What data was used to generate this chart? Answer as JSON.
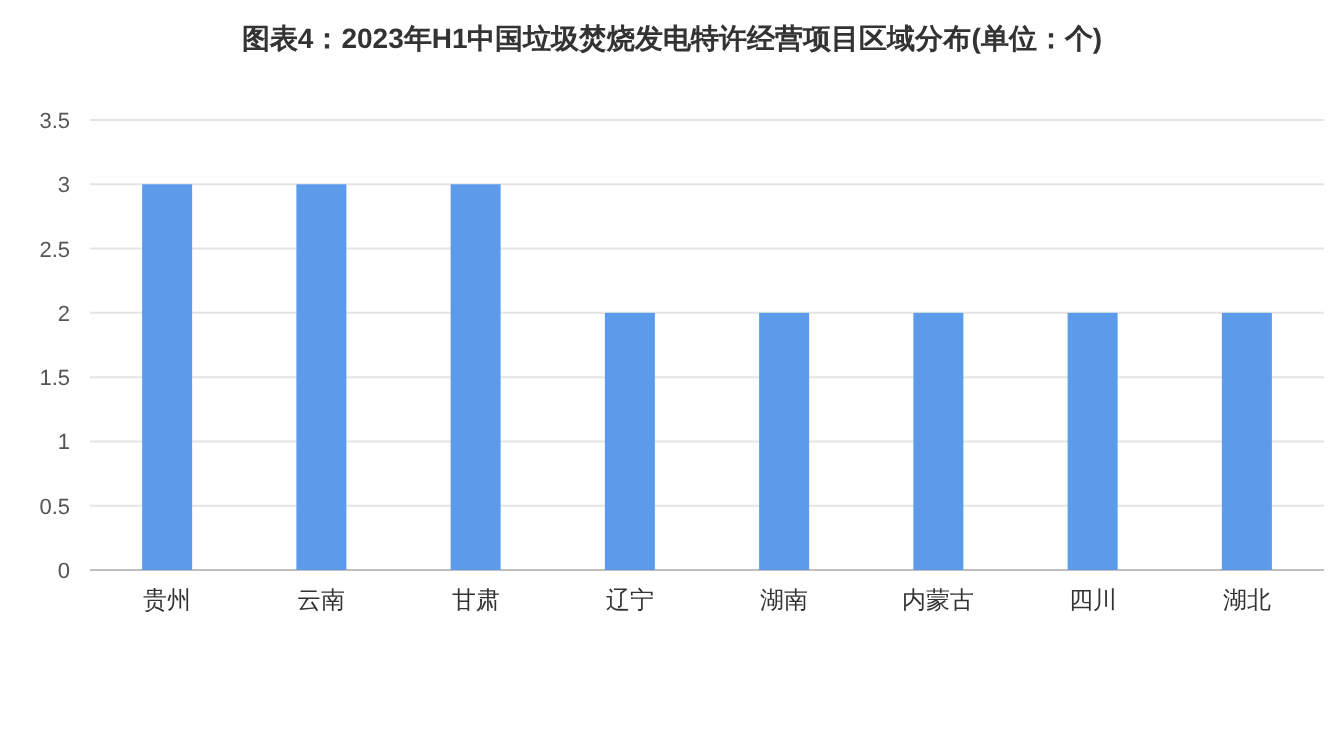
{
  "chart_data": {
    "type": "bar",
    "title": "图表4：2023年H1中国垃圾焚烧发电特许经营项目区域分布(单位：个)",
    "categories": [
      "贵州",
      "云南",
      "甘肃",
      "辽宁",
      "湖南",
      "内蒙古",
      "四川",
      "湖北"
    ],
    "values": [
      3,
      3,
      3,
      2,
      2,
      2,
      2,
      2
    ],
    "color": "#5b9bea",
    "ylim": [
      0,
      3.5
    ],
    "yticks": [
      0,
      0.5,
      1,
      1.5,
      2,
      2.5,
      3,
      3.5
    ],
    "grid": "y"
  }
}
